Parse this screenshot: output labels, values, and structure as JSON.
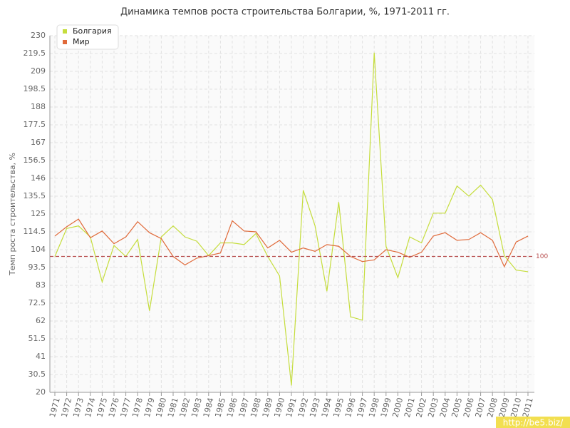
{
  "chart_data": {
    "type": "line",
    "title": "Динамика темпов роста строительства Болгарии, %, 1971-2011 гг.",
    "y_label": "Темп роста строительства, %",
    "categories": [
      "1971",
      "1972",
      "1973",
      "1974",
      "1975",
      "1976",
      "1977",
      "1978",
      "1979",
      "1980",
      "1981",
      "1982",
      "1983",
      "1984",
      "1985",
      "1986",
      "1987",
      "1988",
      "1989",
      "1990",
      "1991",
      "1992",
      "1993",
      "1994",
      "1995",
      "1996",
      "1997",
      "1998",
      "1999",
      "2000",
      "2001",
      "2002",
      "2003",
      "2004",
      "2005",
      "2006",
      "2007",
      "2008",
      "2009",
      "2010",
      "2011"
    ],
    "series": [
      {
        "name": "Болгария",
        "color": "#c5dd3c",
        "values": [
          100,
          116.5,
          118,
          111.5,
          85,
          106.5,
          100,
          110,
          68,
          111.5,
          118,
          111.5,
          109,
          100.5,
          108,
          108,
          107,
          113.5,
          100,
          88.5,
          24,
          139,
          118,
          79.5,
          132,
          64.5,
          62.5,
          220,
          106,
          87.5,
          111.5,
          108,
          125.5,
          125.5,
          141.5,
          135.5,
          142,
          133.5,
          100.5,
          92,
          91
        ]
      },
      {
        "name": "Мир",
        "color": "#e06a3a",
        "values": [
          112,
          117.5,
          122,
          111,
          115,
          107.5,
          111.5,
          120.5,
          114,
          110.5,
          100,
          95,
          99,
          100.5,
          102,
          121,
          115,
          114.5,
          105,
          109.5,
          102.5,
          105,
          103,
          107,
          106,
          100,
          97,
          98,
          104,
          102.5,
          99.5,
          102.5,
          112,
          114,
          109.5,
          110,
          114,
          109.5,
          94,
          108.5,
          112
        ]
      }
    ],
    "reference_line": {
      "value": 100,
      "color": "#b85050"
    },
    "ylim": [
      20,
      230
    ],
    "yticks": [
      20,
      30.5,
      41,
      51.5,
      62,
      72.5,
      83,
      93.5,
      104,
      114.5,
      125,
      135.5,
      146,
      156.5,
      167,
      177.5,
      188,
      198.5,
      209,
      219.5,
      230
    ],
    "grid": true,
    "legend": "top-left",
    "watermark": "http://be5.biz/"
  }
}
